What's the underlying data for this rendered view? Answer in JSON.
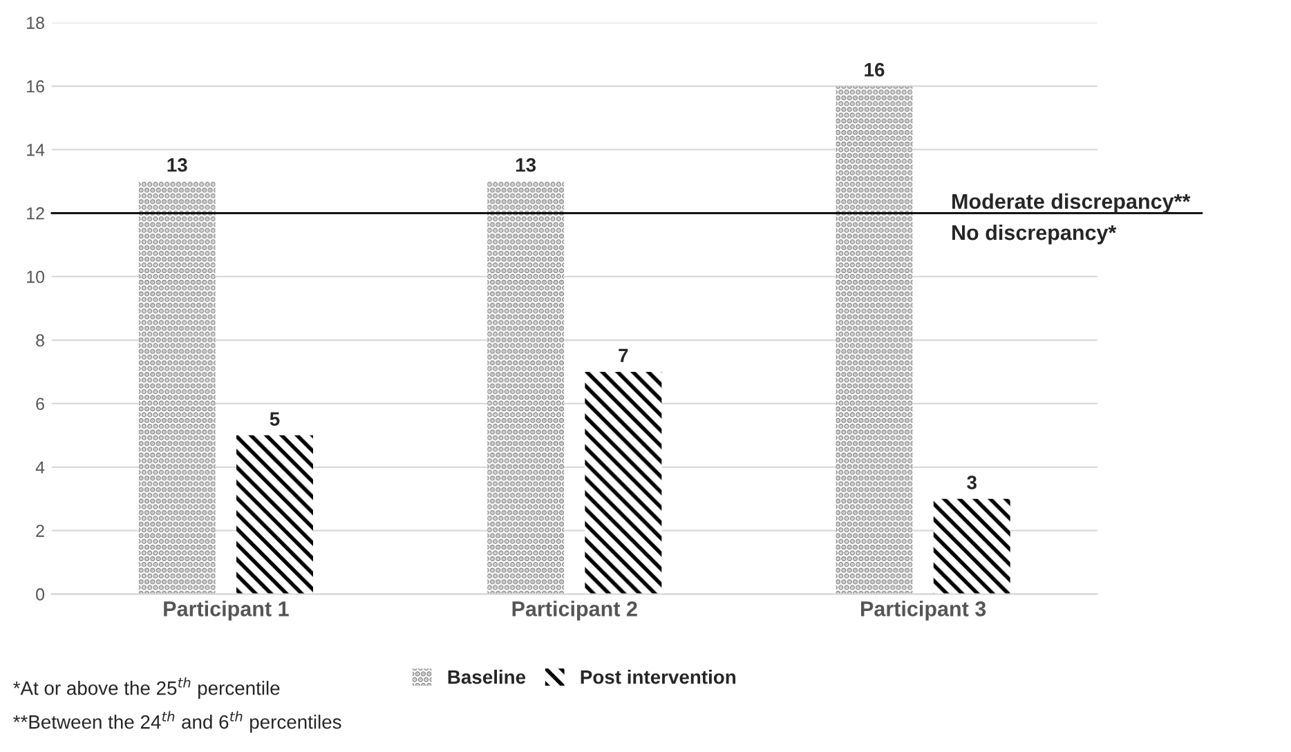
{
  "chart_data": {
    "type": "bar",
    "categories": [
      "Participant 1",
      "Participant 2",
      "Participant 3"
    ],
    "series": [
      {
        "name": "Baseline",
        "color": "#8c8c8c",
        "values": [
          13,
          13,
          16
        ]
      },
      {
        "name": "Post intervention",
        "color": "#000000",
        "values": [
          5,
          7,
          3
        ]
      }
    ],
    "ylim": [
      0,
      18
    ],
    "yticks": [
      0,
      2,
      4,
      6,
      8,
      10,
      12,
      14,
      16,
      18
    ],
    "grid": "y",
    "legend": "bottom",
    "data_labels": true,
    "ref_lines": [
      {
        "axis": "y",
        "value": 12,
        "label": "Moderate discrepancy**",
        "color": "#000000"
      }
    ],
    "annotations": [
      {
        "text": "No discrepancy*",
        "y": 12
      },
      "*At or above the 25$^{th}$ percentile",
      "**Between the 24$^{th}$ and 6$^{th}$ percentiles"
    ]
  }
}
